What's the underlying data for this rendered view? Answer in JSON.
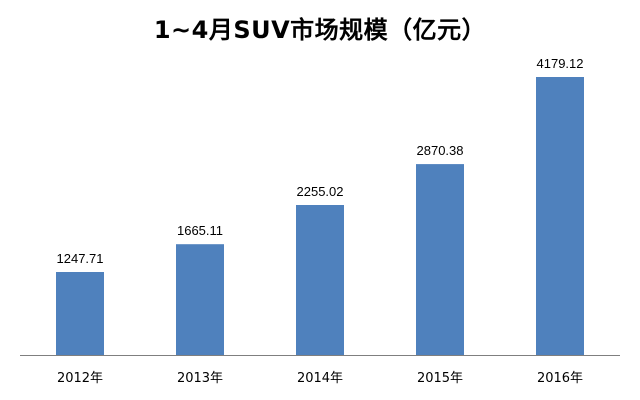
{
  "chart_data": {
    "type": "bar",
    "title": "1~4月SUV市场规模（亿元）",
    "categories": [
      "2012年",
      "2013年",
      "2014年",
      "2015年",
      "2016年"
    ],
    "values": [
      1247.71,
      1665.11,
      2255.02,
      2870.38,
      4179.12
    ],
    "data_labels": [
      "1247.71",
      "1665.11",
      "2255.02",
      "2870.38",
      "4179.12"
    ],
    "xlabel": "",
    "ylabel": "",
    "ylim": [
      0,
      4500
    ],
    "grid": false,
    "legend": "none",
    "bar_color": "#4f81bd"
  }
}
